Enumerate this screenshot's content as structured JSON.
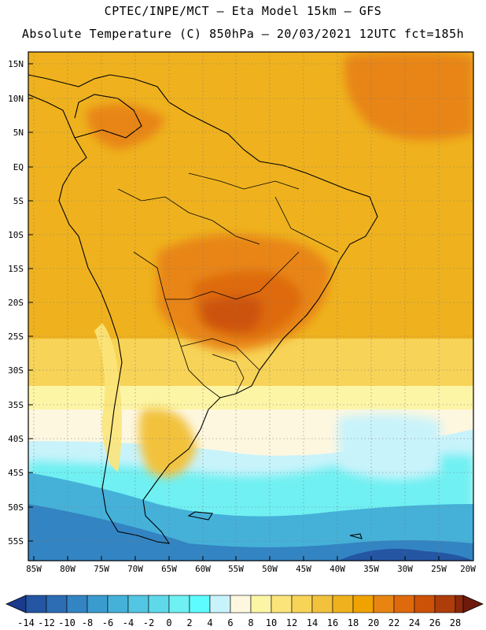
{
  "header": {
    "line1": "CPTEC/INPE/MCT –  Eta Model 15km – GFS",
    "line2": "Absolute Temperature (C) 850hPa – 20/03/2021 12UTC fct=185h"
  },
  "map": {
    "lat_labels": [
      "15N",
      "10N",
      "5N",
      "EQ",
      "5S",
      "10S",
      "15S",
      "20S",
      "25S",
      "30S",
      "35S",
      "40S",
      "45S",
      "50S",
      "55S"
    ],
    "lon_labels": [
      "85W",
      "80W",
      "75W",
      "70W",
      "65W",
      "60W",
      "55W",
      "50W",
      "45W",
      "40W",
      "35W",
      "30W",
      "25W",
      "20W"
    ],
    "temperature_field": [
      {
        "zone": "warm-core-central-brazil",
        "range": [
          20,
          24
        ]
      },
      {
        "zone": "tropics",
        "range": [
          14,
          20
        ]
      },
      {
        "zone": "southern-plains",
        "range": [
          8,
          14
        ]
      },
      {
        "zone": "patagonia-south-atlantic",
        "range": [
          -6,
          6
        ]
      }
    ]
  },
  "colorbar": {
    "labels": [
      "-14",
      "-12",
      "-10",
      "-8",
      "-6",
      "-4",
      "-2",
      "0",
      "2",
      "4",
      "6",
      "8",
      "10",
      "12",
      "14",
      "16",
      "18",
      "20",
      "22",
      "24",
      "26",
      "28"
    ],
    "colors": [
      "#1b3a8c",
      "#2456a3",
      "#2c6db3",
      "#3384c2",
      "#3a9bcf",
      "#45b1d9",
      "#52c6e2",
      "#5fd9ea",
      "#6ff0f2",
      "#c9f3fb",
      "#fdf7e0",
      "#fdf5a6",
      "#fbe47a",
      "#f7d357",
      "#f2c23d",
      "#efb21e",
      "#f0a200",
      "#e88512",
      "#de6a0d",
      "#cc5208",
      "#ad3d0a",
      "#8c290b",
      "#6e1a0d"
    ]
  }
}
